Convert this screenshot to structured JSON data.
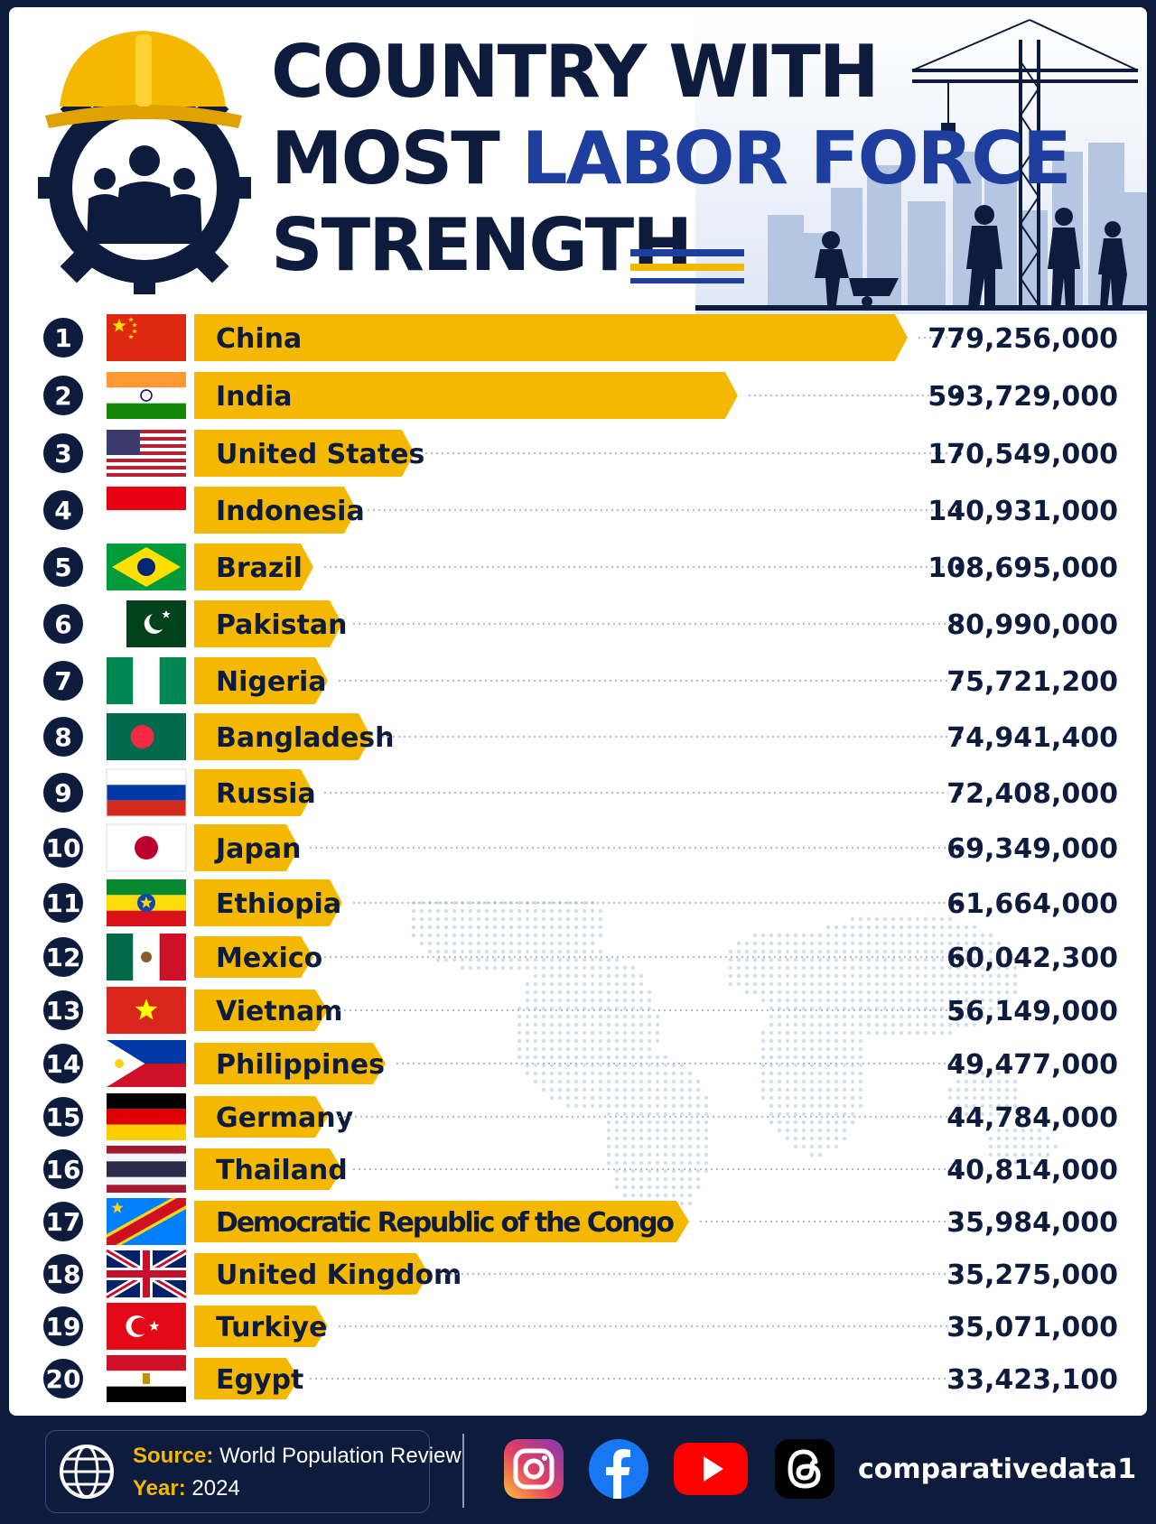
{
  "title": {
    "line1": "COUNTRY WITH",
    "line2_prefix": "MOST",
    "line2_accent": "LABOR FORCE",
    "line3": "STRENGTH"
  },
  "colors": {
    "navy": "#0d1b3d",
    "blue": "#1f3f9e",
    "gold": "#f5b800"
  },
  "chart_data": {
    "type": "bar",
    "orientation": "horizontal",
    "categories": [
      "China",
      "India",
      "United States",
      "Indonesia",
      "Brazil",
      "Pakistan",
      "Nigeria",
      "Bangladesh",
      "Russia",
      "Japan",
      "Ethiopia",
      "Mexico",
      "Vietnam",
      "Philippines",
      "Germany",
      "Thailand",
      "Democratic Republic of the Congo",
      "United Kingdom",
      "Turkiye",
      "Egypt"
    ],
    "values": [
      779256000,
      593729000,
      170549000,
      140931000,
      108695000,
      80990000,
      75721200,
      74941400,
      72408000,
      69349000,
      61664000,
      60042300,
      56149000,
      49477000,
      44784000,
      40814000,
      35984000,
      35275000,
      35071000,
      33423100
    ],
    "value_labels": [
      "779,256,000",
      "593,729,000",
      "170,549,000",
      "140,931,000",
      "108,695,000",
      "80,990,000",
      "75,721,200",
      "74,941,400",
      "72,408,000",
      "69,349,000",
      "61,664,000",
      "60,042,300",
      "56,149,000",
      "49,477,000",
      "44,784,000",
      "40,814,000",
      "35,984,000",
      "35,275,000",
      "35,071,000",
      "33,423,100"
    ],
    "ranks": [
      "1",
      "2",
      "3",
      "4",
      "5",
      "6",
      "7",
      "8",
      "9",
      "10",
      "11",
      "12",
      "13",
      "14",
      "15",
      "16",
      "17",
      "18",
      "19",
      "20"
    ],
    "grid": false,
    "legend": "none"
  },
  "footer": {
    "source_key": "Source:",
    "source_value": "World Population Review",
    "year_key": "Year:",
    "year_value": "2024",
    "handle": "comparativedata1",
    "icons": [
      "instagram-icon",
      "facebook-icon",
      "youtube-icon",
      "threads-icon"
    ]
  }
}
